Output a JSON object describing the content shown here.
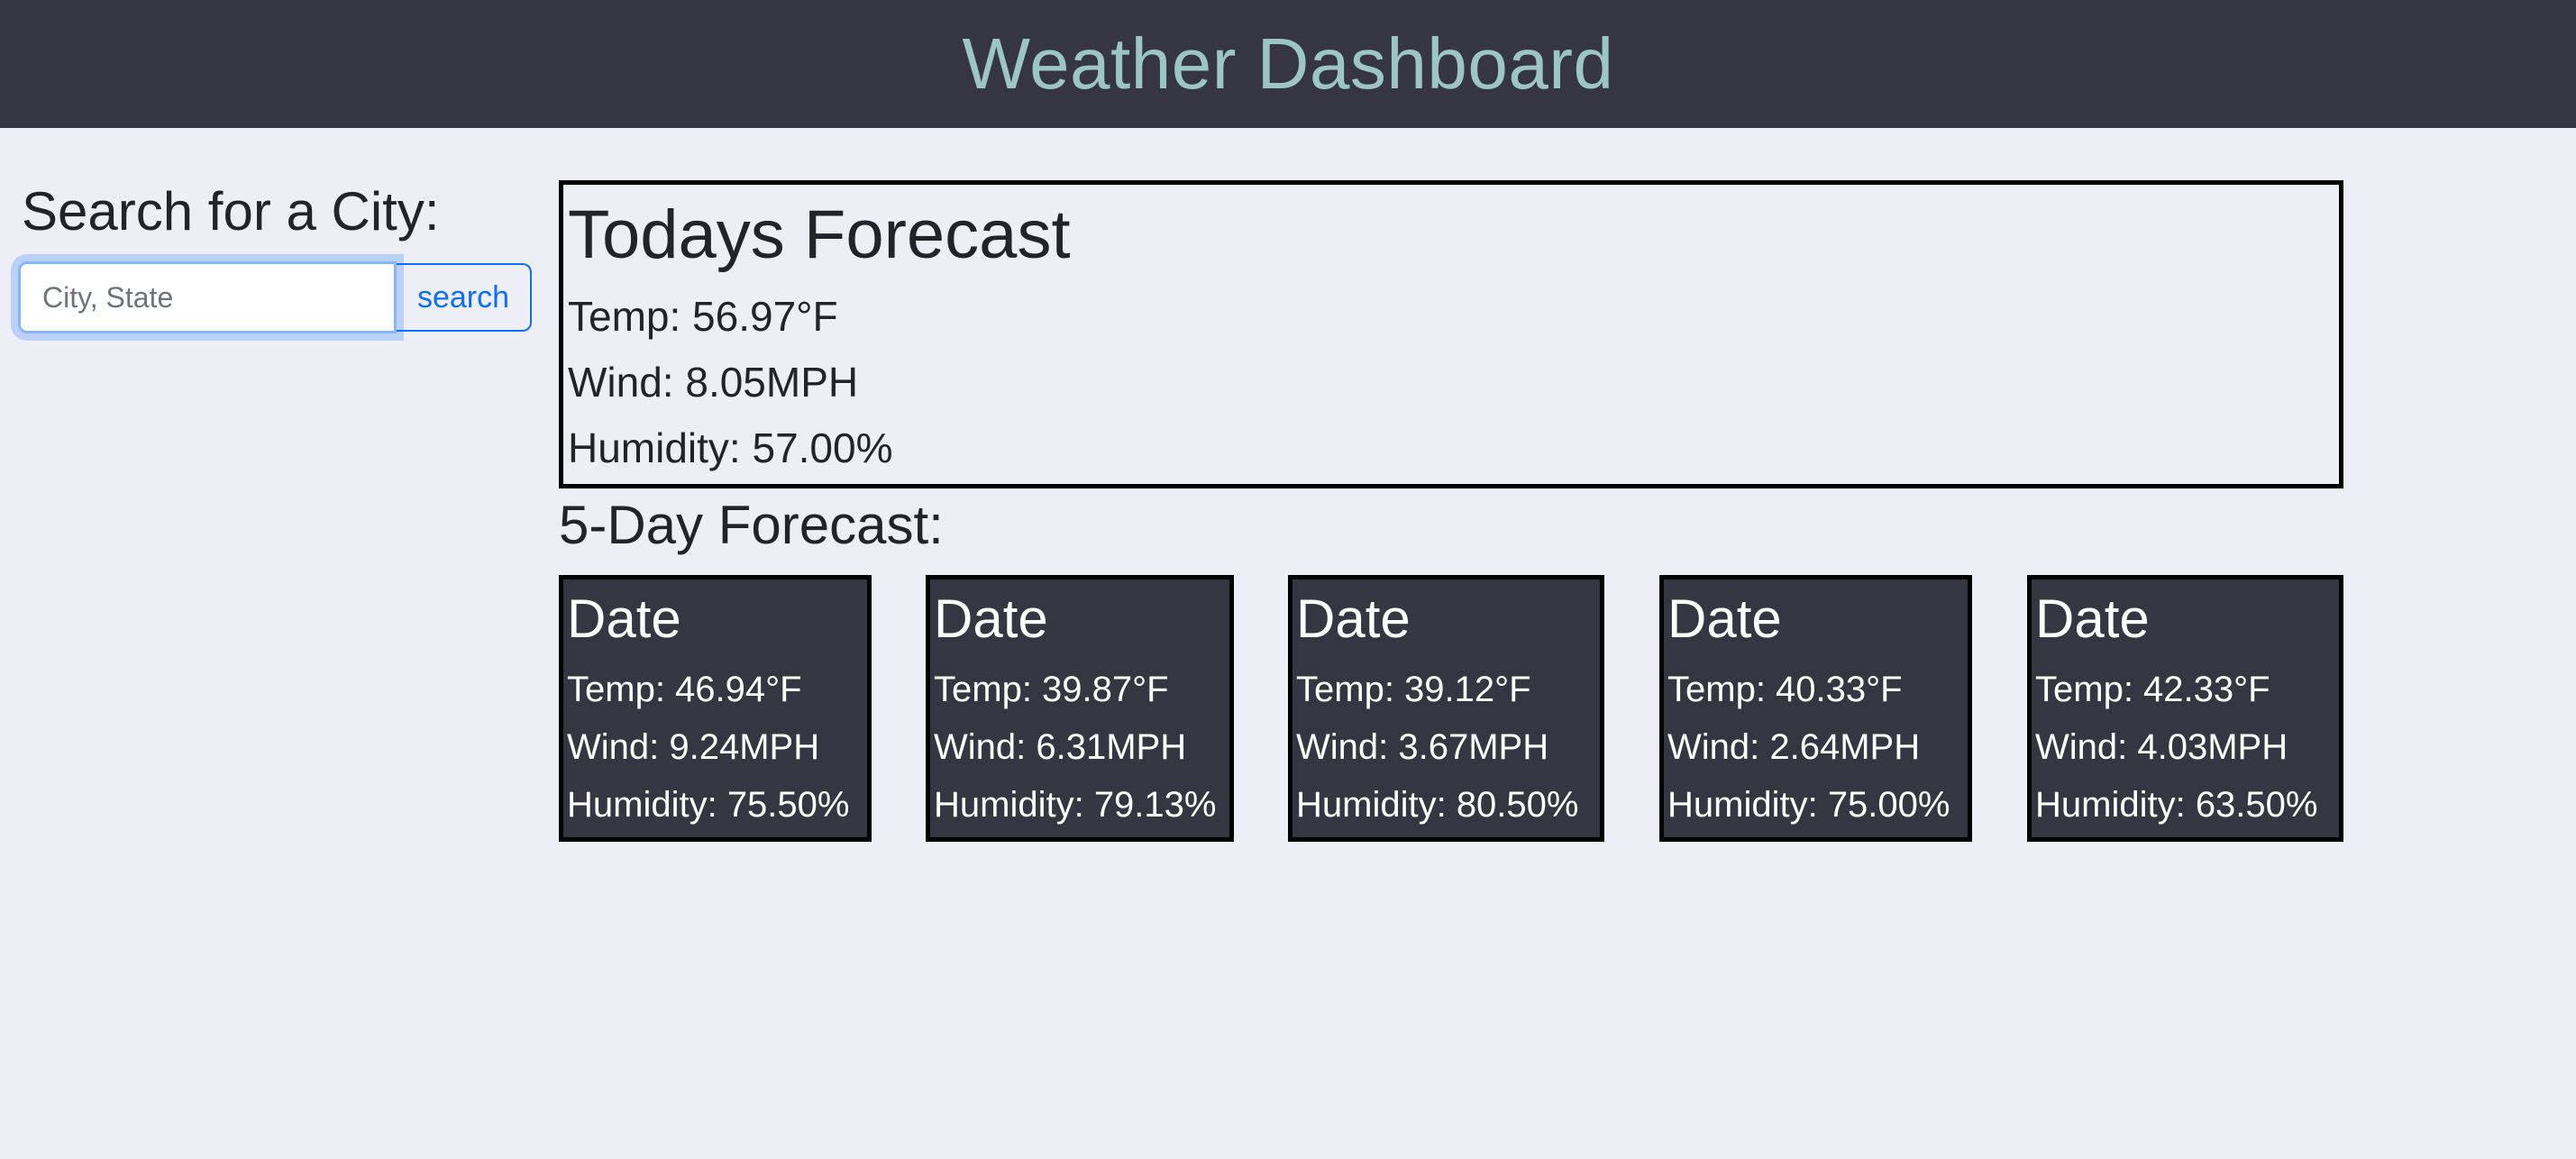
{
  "header": {
    "title": "Weather Dashboard"
  },
  "search": {
    "title": "Search for a City:",
    "placeholder": "City, State",
    "value": "",
    "button_label": "search"
  },
  "today": {
    "title": "Todays Forecast",
    "temp": "Temp: 56.97°F",
    "wind": "Wind: 8.05MPH",
    "humidity": "Humidity: 57.00%"
  },
  "forecast": {
    "title": "5-Day Forecast:",
    "days": [
      {
        "date": "Date",
        "temp": "Temp: 46.94°F",
        "wind": "Wind: 9.24MPH",
        "humidity": "Humidity: 75.50%"
      },
      {
        "date": "Date",
        "temp": "Temp: 39.87°F",
        "wind": "Wind: 6.31MPH",
        "humidity": "Humidity: 79.13%"
      },
      {
        "date": "Date",
        "temp": "Temp: 39.12°F",
        "wind": "Wind: 3.67MPH",
        "humidity": "Humidity: 80.50%"
      },
      {
        "date": "Date",
        "temp": "Temp: 40.33°F",
        "wind": "Wind: 2.64MPH",
        "humidity": "Humidity: 75.00%"
      },
      {
        "date": "Date",
        "temp": "Temp: 42.33°F",
        "wind": "Wind: 4.03MPH",
        "humidity": "Humidity: 63.50%"
      }
    ]
  },
  "colors": {
    "header_bg": "#353641",
    "header_text": "#9cc5c5",
    "page_bg": "#edeef6",
    "card_bg": "#353641",
    "accent": "#0d6efd"
  }
}
